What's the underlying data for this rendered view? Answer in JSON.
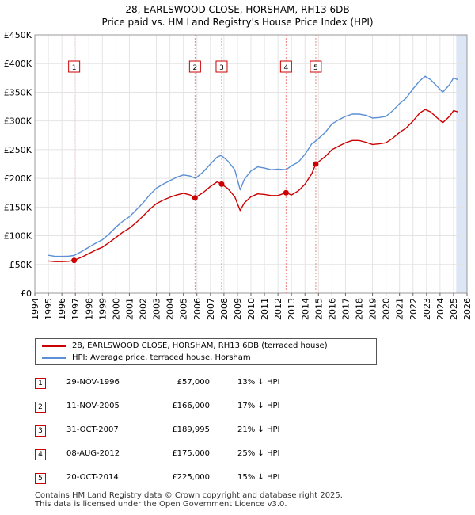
{
  "title_line1": "28, EARLSWOOD CLOSE, HORSHAM, RH13 6DB",
  "title_line2": "Price paid vs. HM Land Registry's House Price Index (HPI)",
  "colors": {
    "property": "#cc0000",
    "hpi": "#5b8fd6",
    "shade": "#dde6f5",
    "marker_border": "#cc0000"
  },
  "legend": {
    "property": "28, EARLSWOOD CLOSE, HORSHAM, RH13 6DB (terraced house)",
    "hpi": "HPI: Average price, terraced house, Horsham"
  },
  "sales": [
    {
      "num": "1",
      "date": "29-NOV-1996",
      "price": "£57,000",
      "hpi": "13% ↓ HPI"
    },
    {
      "num": "2",
      "date": "11-NOV-2005",
      "price": "£166,000",
      "hpi": "17% ↓ HPI"
    },
    {
      "num": "3",
      "date": "31-OCT-2007",
      "price": "£189,995",
      "hpi": "21% ↓ HPI"
    },
    {
      "num": "4",
      "date": "08-AUG-2012",
      "price": "£175,000",
      "hpi": "25% ↓ HPI"
    },
    {
      "num": "5",
      "date": "20-OCT-2014",
      "price": "£225,000",
      "hpi": "15% ↓ HPI"
    }
  ],
  "footer_line1": "Contains HM Land Registry data © Crown copyright and database right 2025.",
  "footer_line2": "This data is licensed under the Open Government Licence v3.0.",
  "chart_data": {
    "type": "line",
    "title": "28, EARLSWOOD CLOSE, HORSHAM, RH13 6DB Price paid vs. HM Land Registry's House Price Index (HPI)",
    "xlim": [
      1994,
      2026
    ],
    "ylim": [
      0,
      450000
    ],
    "x_ticks": [
      "1994",
      "1995",
      "1996",
      "1997",
      "1998",
      "1999",
      "2000",
      "2001",
      "2002",
      "2003",
      "2004",
      "2005",
      "2006",
      "2007",
      "2008",
      "2009",
      "2010",
      "2011",
      "2012",
      "2013",
      "2014",
      "2015",
      "2016",
      "2017",
      "2018",
      "2019",
      "2020",
      "2021",
      "2022",
      "2023",
      "2024",
      "2025",
      "2026"
    ],
    "y_ticks": [
      {
        "v": 0,
        "label": "£0"
      },
      {
        "v": 50000,
        "label": "£50K"
      },
      {
        "v": 100000,
        "label": "£100K"
      },
      {
        "v": 150000,
        "label": "£150K"
      },
      {
        "v": 200000,
        "label": "£200K"
      },
      {
        "v": 250000,
        "label": "£250K"
      },
      {
        "v": 300000,
        "label": "£300K"
      },
      {
        "v": 350000,
        "label": "£350K"
      },
      {
        "v": 400000,
        "label": "£400K"
      },
      {
        "v": 450000,
        "label": "£450K"
      }
    ],
    "shaded_future_from": 2025.2,
    "series": [
      {
        "name": "HPI: Average price, terraced house, Horsham",
        "color": "#5b8fd6",
        "x": [
          1995.0,
          1995.5,
          1996.0,
          1996.5,
          1996.9,
          1997.5,
          1998.0,
          1998.5,
          1999.0,
          1999.5,
          2000.0,
          2000.5,
          2001.0,
          2001.5,
          2002.0,
          2002.5,
          2003.0,
          2003.5,
          2004.0,
          2004.5,
          2005.0,
          2005.5,
          2005.9,
          2006.5,
          2007.0,
          2007.5,
          2007.8,
          2008.3,
          2008.8,
          2009.2,
          2009.5,
          2010.0,
          2010.5,
          2011.0,
          2011.5,
          2012.0,
          2012.6,
          2013.0,
          2013.5,
          2014.0,
          2014.5,
          2014.8,
          2015.5,
          2016.0,
          2016.5,
          2017.0,
          2017.5,
          2018.0,
          2018.5,
          2019.0,
          2019.5,
          2020.0,
          2020.5,
          2021.0,
          2021.5,
          2022.0,
          2022.5,
          2022.9,
          2023.3,
          2023.8,
          2024.2,
          2024.7,
          2025.0,
          2025.3
        ],
        "y": [
          66000,
          64000,
          64000,
          64500,
          65500,
          73000,
          80000,
          87000,
          93000,
          103000,
          115000,
          125000,
          133000,
          145000,
          157000,
          171000,
          183000,
          190000,
          196000,
          202000,
          206000,
          204000,
          200000,
          212000,
          225000,
          237000,
          240000,
          230000,
          215000,
          180000,
          198000,
          213000,
          220000,
          218000,
          215000,
          216000,
          215000,
          222000,
          228000,
          242000,
          260000,
          265000,
          280000,
          295000,
          302000,
          308000,
          312000,
          312000,
          310000,
          305000,
          306000,
          308000,
          318000,
          330000,
          340000,
          356000,
          370000,
          378000,
          372000,
          360000,
          350000,
          363000,
          375000,
          372000
        ]
      },
      {
        "name": "28, EARLSWOOD CLOSE, HORSHAM, RH13 6DB (terraced house)",
        "color": "#cc0000",
        "x": [
          1995.0,
          1995.5,
          1996.0,
          1996.5,
          1996.9,
          1997.5,
          1998.0,
          1998.5,
          1999.0,
          1999.5,
          2000.0,
          2000.5,
          2001.0,
          2001.5,
          2002.0,
          2002.5,
          2003.0,
          2003.5,
          2004.0,
          2004.5,
          2005.0,
          2005.5,
          2005.86,
          2006.5,
          2007.0,
          2007.5,
          2007.83,
          2008.3,
          2008.8,
          2009.2,
          2009.5,
          2010.0,
          2010.5,
          2011.0,
          2011.5,
          2012.0,
          2012.6,
          2013.0,
          2013.5,
          2014.0,
          2014.5,
          2014.8,
          2015.5,
          2016.0,
          2016.5,
          2017.0,
          2017.5,
          2018.0,
          2018.5,
          2019.0,
          2019.5,
          2020.0,
          2020.5,
          2021.0,
          2021.5,
          2022.0,
          2022.5,
          2022.9,
          2023.3,
          2023.8,
          2024.2,
          2024.7,
          2025.0,
          2025.3
        ],
        "y": [
          56000,
          55000,
          55000,
          55500,
          57000,
          63000,
          69000,
          75000,
          80000,
          88000,
          97000,
          106000,
          113000,
          123000,
          134000,
          146000,
          156000,
          162000,
          167000,
          171000,
          174000,
          171000,
          166000,
          176000,
          186000,
          194000,
          189995,
          182000,
          168000,
          144000,
          157000,
          168000,
          173000,
          172000,
          170000,
          170000,
          175000,
          171000,
          178000,
          190000,
          208000,
          225000,
          238000,
          250000,
          256000,
          262000,
          266000,
          266000,
          263000,
          259000,
          260000,
          262000,
          270000,
          280000,
          288000,
          300000,
          314000,
          320000,
          316000,
          305000,
          297000,
          308000,
          318000,
          316000
        ]
      }
    ],
    "sale_markers": [
      {
        "num": "1",
        "x": 1996.91,
        "y": 57000
      },
      {
        "num": "2",
        "x": 2005.86,
        "y": 166000
      },
      {
        "num": "3",
        "x": 2007.83,
        "y": 189995
      },
      {
        "num": "4",
        "x": 2012.6,
        "y": 175000
      },
      {
        "num": "5",
        "x": 2014.8,
        "y": 225000
      }
    ]
  }
}
